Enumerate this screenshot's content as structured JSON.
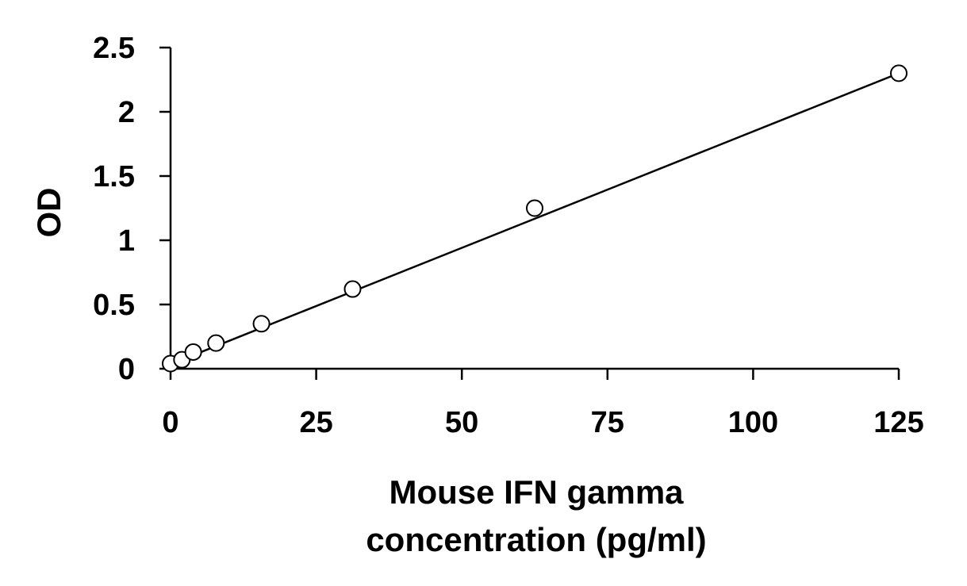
{
  "chart_data": {
    "type": "scatter",
    "title": "",
    "xlabel_lines": [
      "Mouse IFN gamma",
      "concentration (pg/ml)"
    ],
    "ylabel": "OD",
    "xlim": [
      0,
      125
    ],
    "ylim": [
      0,
      2.5
    ],
    "xticks": [
      0,
      25,
      50,
      75,
      100,
      125
    ],
    "yticks": [
      0,
      0.5,
      1,
      1.5,
      2,
      2.5
    ],
    "xtick_labels": [
      "0",
      "25",
      "50",
      "75",
      "100",
      "125"
    ],
    "ytick_labels": [
      "0",
      "0.5",
      "1",
      "1.5",
      "2",
      "2.5"
    ],
    "grid": false,
    "legend": "none",
    "series": [
      {
        "marker": "open-circle",
        "x": [
          0,
          1.95,
          3.9,
          7.8,
          15.6,
          31.25,
          62.5,
          125
        ],
        "y": [
          0.04,
          0.07,
          0.13,
          0.2,
          0.35,
          0.62,
          1.25,
          2.3
        ]
      }
    ],
    "fit_line": {
      "type": "trendline",
      "x": [
        0,
        125
      ],
      "y": [
        0.035,
        2.3
      ]
    }
  }
}
